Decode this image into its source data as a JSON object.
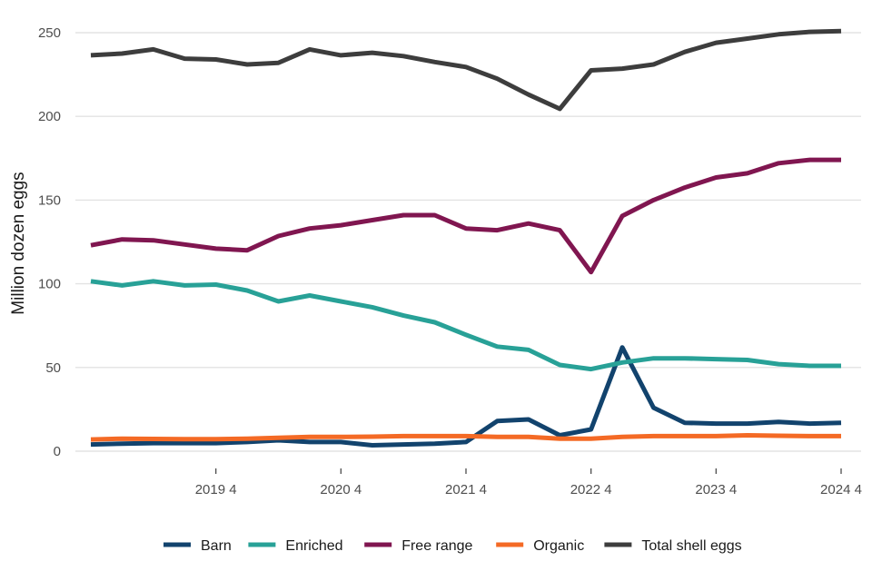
{
  "chart_data": {
    "type": "line",
    "ylabel": "Million dozen eggs",
    "xlabel": "",
    "ylim": [
      0,
      260
    ],
    "y_ticks": [
      0,
      50,
      100,
      150,
      200,
      250
    ],
    "x_tick_labels": [
      "2019 4",
      "2020 4",
      "2021 4",
      "2022 4",
      "2023 4",
      "2024 4"
    ],
    "x": [
      "2018 4",
      "2019 1",
      "2019 2",
      "2019 3",
      "2019 4",
      "2020 1",
      "2020 2",
      "2020 3",
      "2020 4",
      "2021 1",
      "2021 2",
      "2021 3",
      "2021 4",
      "2022 1",
      "2022 2",
      "2022 3",
      "2022 4",
      "2023 1",
      "2023 2",
      "2023 3",
      "2023 4",
      "2024 1",
      "2024 2",
      "2024 3",
      "2024 4"
    ],
    "grid": true,
    "legend_position": "bottom",
    "series": [
      {
        "name": "Barn",
        "color": "#12436d",
        "values": [
          4,
          4.5,
          4.8,
          4.8,
          4.8,
          5.5,
          6.5,
          5.5,
          5.5,
          3.5,
          4,
          4.5,
          5.5,
          18,
          19,
          9.5,
          13,
          62,
          26,
          17,
          16.5,
          16.5,
          17.5,
          16.5,
          17
        ]
      },
      {
        "name": "Enriched",
        "color": "#28a197",
        "values": [
          101.5,
          99,
          101.5,
          99,
          99.5,
          96,
          89.5,
          93,
          89.5,
          86,
          81,
          77,
          69.5,
          62.5,
          60.5,
          51.5,
          49,
          53,
          55.5,
          55.5,
          55,
          54.5,
          52,
          51,
          51
        ]
      },
      {
        "name": "Free range",
        "color": "#801650",
        "values": [
          123,
          126.5,
          126,
          123.5,
          121,
          120,
          128.5,
          133,
          135,
          138,
          141,
          141,
          133,
          132,
          136,
          132,
          107,
          140.5,
          150,
          157.5,
          163.5,
          166,
          172,
          174,
          174
        ]
      },
      {
        "name": "Organic",
        "color": "#f46a25",
        "values": [
          7,
          7.5,
          7.3,
          7.2,
          7.2,
          7.5,
          8,
          8.5,
          8.5,
          8.7,
          9,
          9,
          9,
          8.5,
          8.5,
          7.5,
          7.5,
          8.5,
          9,
          9,
          9,
          9.5,
          9.2,
          9,
          9
        ]
      },
      {
        "name": "Total shell eggs",
        "color": "#3d3d3d",
        "values": [
          236.5,
          237.5,
          240,
          234.5,
          234,
          231,
          232,
          240,
          236.5,
          238,
          236,
          232.5,
          229.5,
          222.5,
          213,
          204.5,
          227.5,
          228.5,
          231,
          238.5,
          244,
          246.5,
          249,
          250.5,
          251
        ]
      }
    ]
  }
}
